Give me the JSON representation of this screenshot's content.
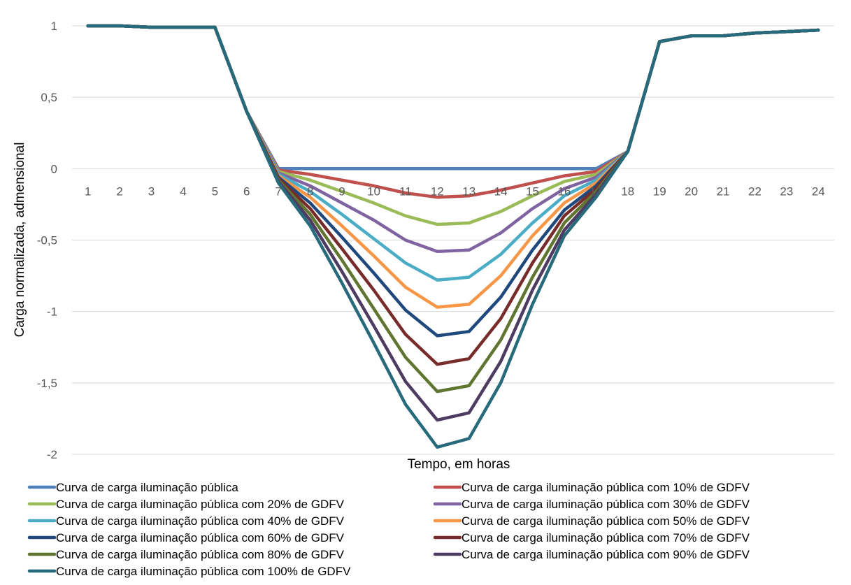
{
  "chart_data": {
    "type": "line",
    "title": "",
    "xlabel": "Tempo, em horas",
    "ylabel": "Carga normalizada, admensional",
    "ylim": [
      -2,
      1
    ],
    "ytick_values": [
      1,
      0.5,
      0,
      -0.5,
      -1,
      -1.5,
      -2
    ],
    "ytick_labels": [
      "1",
      "0,5",
      "0",
      "-0,5",
      "-1",
      "-1,5",
      "-2"
    ],
    "categories": [
      "1",
      "2",
      "3",
      "4",
      "5",
      "6",
      "7",
      "8",
      "9",
      "10",
      "11",
      "12",
      "13",
      "14",
      "15",
      "16",
      "17",
      "18",
      "19",
      "20",
      "21",
      "22",
      "23",
      "24"
    ],
    "grid": true,
    "legend_position": "bottom",
    "series": [
      {
        "name": "Curva de carga iluminação pública",
        "color": "#4F81BD",
        "values": [
          1.0,
          1.0,
          0.99,
          0.99,
          0.99,
          0.4,
          0,
          0,
          0,
          0,
          0,
          0,
          0,
          0,
          0,
          0,
          0,
          0.12,
          0.89,
          0.93,
          0.93,
          0.95,
          0.96,
          0.97
        ]
      },
      {
        "name": "Curva de carga iluminação pública com 10% de GDFV",
        "color": "#C0504D",
        "values": [
          1.0,
          1.0,
          0.99,
          0.99,
          0.99,
          0.4,
          -0.01,
          -0.04,
          -0.08,
          -0.12,
          -0.17,
          -0.2,
          -0.19,
          -0.15,
          -0.1,
          -0.05,
          -0.02,
          0.12,
          0.89,
          0.93,
          0.93,
          0.95,
          0.96,
          0.97
        ]
      },
      {
        "name": "Curva de carga iluminação pública com 20% de GDFV",
        "color": "#9BBB59",
        "values": [
          1.0,
          1.0,
          0.99,
          0.99,
          0.99,
          0.4,
          -0.02,
          -0.08,
          -0.16,
          -0.24,
          -0.33,
          -0.39,
          -0.38,
          -0.3,
          -0.19,
          -0.09,
          -0.04,
          0.12,
          0.89,
          0.93,
          0.93,
          0.95,
          0.96,
          0.97
        ]
      },
      {
        "name": "Curva de carga iluminação pública com 30% de GDFV",
        "color": "#8064A2",
        "values": [
          1.0,
          1.0,
          0.99,
          0.99,
          0.99,
          0.4,
          -0.03,
          -0.12,
          -0.24,
          -0.36,
          -0.5,
          -0.58,
          -0.57,
          -0.45,
          -0.28,
          -0.14,
          -0.06,
          0.12,
          0.89,
          0.93,
          0.93,
          0.95,
          0.96,
          0.97
        ]
      },
      {
        "name": "Curva de carga iluminação pública com 40% de GDFV",
        "color": "#4BACC6",
        "values": [
          1.0,
          1.0,
          0.99,
          0.99,
          0.99,
          0.4,
          -0.04,
          -0.16,
          -0.32,
          -0.49,
          -0.66,
          -0.78,
          -0.76,
          -0.6,
          -0.38,
          -0.19,
          -0.08,
          0.12,
          0.89,
          0.93,
          0.93,
          0.95,
          0.96,
          0.97
        ]
      },
      {
        "name": "Curva de carga iluminação pública com 50% de GDFV",
        "color": "#F79646",
        "values": [
          1.0,
          1.0,
          0.99,
          0.99,
          0.99,
          0.4,
          -0.05,
          -0.2,
          -0.4,
          -0.61,
          -0.83,
          -0.97,
          -0.95,
          -0.75,
          -0.47,
          -0.24,
          -0.1,
          0.12,
          0.89,
          0.93,
          0.93,
          0.95,
          0.96,
          0.97
        ]
      },
      {
        "name": "Curva de carga iluminação pública com 60% de GDFV",
        "color": "#1F497D",
        "values": [
          1.0,
          1.0,
          0.99,
          0.99,
          0.99,
          0.4,
          -0.06,
          -0.24,
          -0.48,
          -0.73,
          -0.99,
          -1.17,
          -1.14,
          -0.9,
          -0.57,
          -0.29,
          -0.12,
          0.12,
          0.89,
          0.93,
          0.93,
          0.95,
          0.96,
          0.97
        ]
      },
      {
        "name": "Curva de carga iluminação pública com 70% de GDFV",
        "color": "#772C2A",
        "values": [
          1.0,
          1.0,
          0.99,
          0.99,
          0.99,
          0.4,
          -0.07,
          -0.28,
          -0.56,
          -0.85,
          -1.16,
          -1.37,
          -1.33,
          -1.05,
          -0.66,
          -0.33,
          -0.14,
          0.12,
          0.89,
          0.93,
          0.93,
          0.95,
          0.96,
          0.97
        ]
      },
      {
        "name": "Curva de carga iluminação pública com 80% de GDFV",
        "color": "#5F7530",
        "values": [
          1.0,
          1.0,
          0.99,
          0.99,
          0.99,
          0.4,
          -0.08,
          -0.32,
          -0.64,
          -0.98,
          -1.32,
          -1.56,
          -1.52,
          -1.2,
          -0.76,
          -0.38,
          -0.16,
          0.12,
          0.89,
          0.93,
          0.93,
          0.95,
          0.96,
          0.97
        ]
      },
      {
        "name": "Curva de carga iluminação pública com 90% de GDFV",
        "color": "#4D3B62",
        "values": [
          1.0,
          1.0,
          0.99,
          0.99,
          0.99,
          0.4,
          -0.09,
          -0.36,
          -0.72,
          -1.1,
          -1.49,
          -1.76,
          -1.71,
          -1.35,
          -0.85,
          -0.43,
          -0.18,
          0.12,
          0.89,
          0.93,
          0.93,
          0.95,
          0.96,
          0.97
        ]
      },
      {
        "name": "Curva de carga iluminação pública com 100% de GDFV",
        "color": "#276A7C",
        "values": [
          1.0,
          1.0,
          0.99,
          0.99,
          0.99,
          0.4,
          -0.1,
          -0.4,
          -0.8,
          -1.22,
          -1.65,
          -1.95,
          -1.89,
          -1.5,
          -0.95,
          -0.47,
          -0.2,
          0.12,
          0.89,
          0.93,
          0.93,
          0.95,
          0.96,
          0.97
        ]
      }
    ]
  }
}
